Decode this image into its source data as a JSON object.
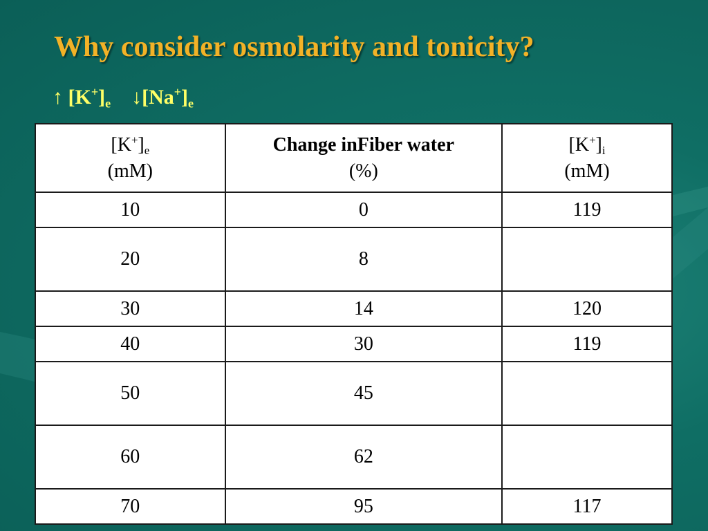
{
  "title": "Why consider osmolarity and tonicity?",
  "subtitle": [
    "↑ [K",
    "+",
    "]",
    "e",
    "↓[Na",
    "+",
    "]",
    "e"
  ],
  "table": {
    "header": [
      [
        "[K",
        "+",
        "]",
        "e",
        "(mM)"
      ],
      [
        "Change inFiber water",
        "(%)"
      ],
      [
        "[K",
        "+",
        "]",
        "i",
        "(mM)"
      ]
    ],
    "rows": [
      [
        10,
        0,
        119
      ],
      [
        20,
        8,
        null
      ],
      [
        30,
        14,
        120
      ],
      [
        40,
        30,
        119
      ],
      [
        50,
        45,
        null
      ],
      [
        60,
        62,
        null
      ],
      [
        70,
        95,
        117
      ]
    ]
  }
}
